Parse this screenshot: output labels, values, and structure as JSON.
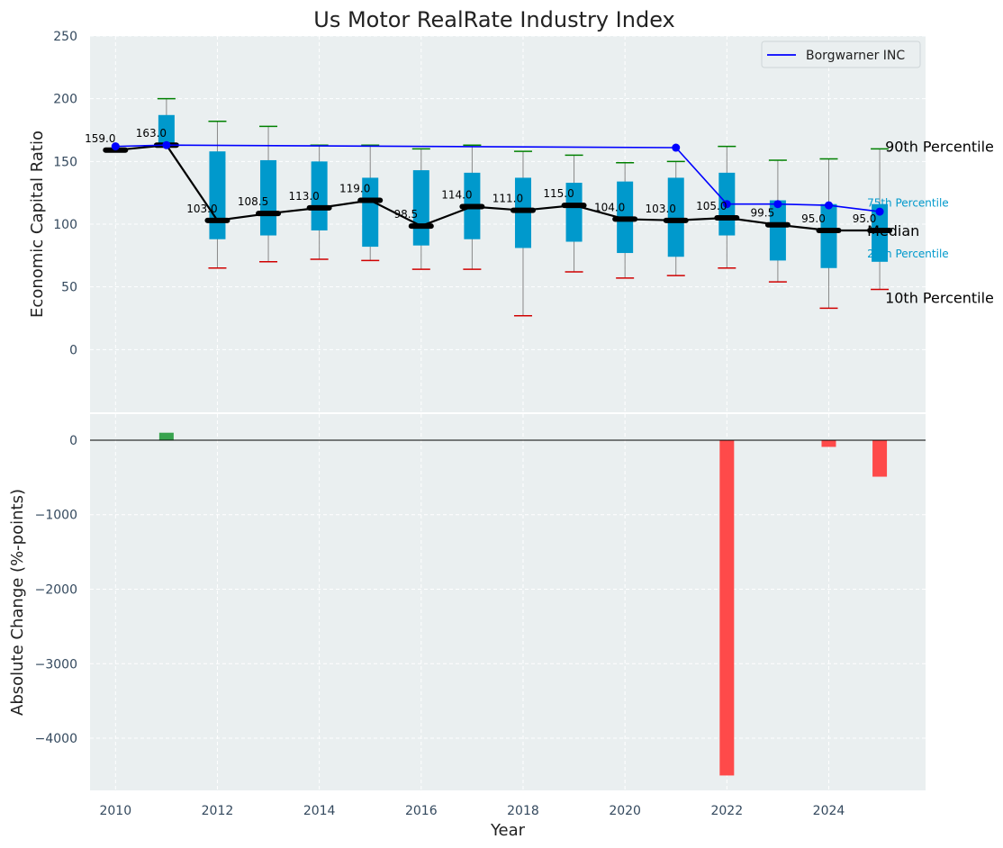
{
  "chart_data": [
    {
      "type": "box",
      "title": "Us Motor RealRate Industry Index",
      "ylabel": "Economic Capital Ratio",
      "ylim": [
        -50,
        250
      ],
      "xlim": [
        2009.5,
        2025.9
      ],
      "grid": true,
      "legend_position": "top-right",
      "yticks": [
        0,
        50,
        100,
        150,
        200,
        250
      ],
      "years": [
        2010,
        2011,
        2012,
        2013,
        2014,
        2015,
        2016,
        2017,
        2018,
        2019,
        2020,
        2021,
        2022,
        2023,
        2024,
        2025
      ],
      "p10": [
        159,
        163,
        65,
        70,
        72,
        71,
        64,
        64,
        27,
        62,
        57,
        59,
        65,
        54,
        33,
        48
      ],
      "p25": [
        159,
        163,
        88,
        91,
        95,
        82,
        83,
        88,
        81,
        86,
        77,
        74,
        91,
        71,
        65,
        70
      ],
      "median": [
        159.0,
        163.0,
        103.0,
        108.5,
        113.0,
        119.0,
        98.5,
        114.0,
        111.0,
        115.0,
        104.0,
        103.0,
        105.0,
        99.5,
        95.0,
        95.0
      ],
      "median_labels": [
        "159.0",
        "163.0",
        "103.0",
        "108.5",
        "113.0",
        "119.0",
        "98.5",
        "114.0",
        "111.0",
        "115.0",
        "104.0",
        "103.0",
        "105.0",
        "99.5",
        "95.0",
        "95.0"
      ],
      "p75": [
        159,
        187,
        158,
        151,
        150,
        137,
        143,
        141,
        137,
        133,
        134,
        137,
        141,
        119,
        116,
        116
      ],
      "p90": [
        159,
        200,
        182,
        178,
        163,
        163,
        160,
        163,
        158,
        155,
        149,
        150,
        162,
        151,
        152,
        160
      ],
      "company": {
        "name": "Borgwarner INC",
        "years": [
          2010,
          2011,
          2021,
          2022,
          2023,
          2024,
          2025
        ],
        "values": [
          162,
          163,
          161,
          116,
          116,
          115,
          110
        ]
      },
      "annotations": {
        "p90": "90th Percentile",
        "p75": "75th Percentile",
        "median": "Median",
        "p25": "25th Percentile",
        "p10": "10th Percentile"
      },
      "colors": {
        "box": "#0099cc",
        "median_line": "#000000",
        "company_line": "#0000ff",
        "p90_cap": "#008000",
        "p10_cap": "#d00000",
        "whisker": "#888888",
        "background": "#eaeff0"
      }
    },
    {
      "type": "bar",
      "ylabel": "Absolute Change (%-points)",
      "xlabel": "Year",
      "ylim": [
        -4700,
        350
      ],
      "yticks": [
        0,
        -1000,
        -2000,
        -3000,
        -4000
      ],
      "ytick_labels": [
        "0",
        "−1000",
        "−2000",
        "−3000",
        "−4000"
      ],
      "xticks": [
        "2010",
        "2012",
        "2014",
        "2016",
        "2018",
        "2020",
        "2022",
        "2024"
      ],
      "x": [
        2011,
        2022,
        2024,
        2025
      ],
      "values": [
        100,
        -4500,
        -90,
        -490
      ],
      "colors": {
        "positive": "#2e9e44",
        "negative": "#ff4040"
      }
    }
  ]
}
